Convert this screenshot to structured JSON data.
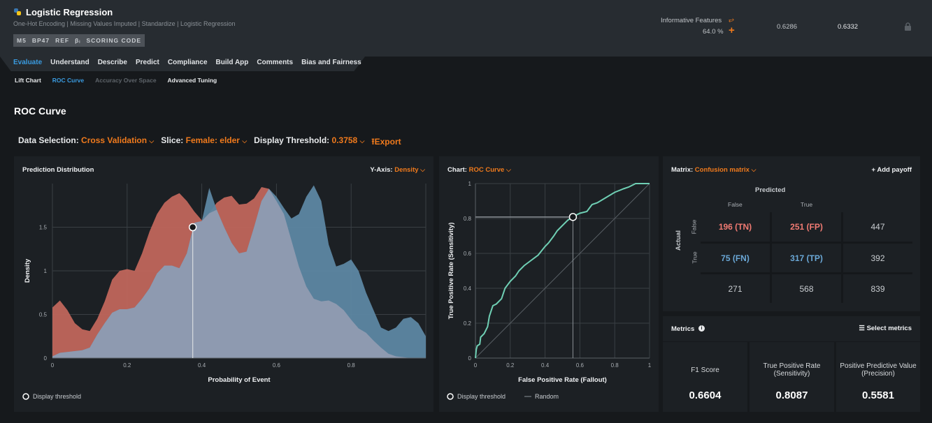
{
  "header": {
    "title": "Logistic Regression",
    "subtitle": "One-Hot Encoding | Missing Values Imputed | Standardize | Logistic Regression",
    "badges": [
      "M5",
      "BP47",
      "REF",
      "βᵢ",
      "SCORING CODE"
    ],
    "informative_features_label": "Informative Features",
    "informative_features_pct": "64.0 %",
    "score_validation": "0.6286",
    "score_cv": "0.6332",
    "icons": [
      "python-icon",
      "feature-list-icon",
      "plus-icon",
      "lock-icon"
    ]
  },
  "tabs": [
    "Evaluate",
    "Understand",
    "Describe",
    "Predict",
    "Compliance",
    "Build App",
    "Comments",
    "Bias and Fairness"
  ],
  "subtabs": [
    "Lift Chart",
    "ROC Curve",
    "Accuracy Over Space",
    "Advanced Tuning"
  ],
  "page_title": "ROC Curve",
  "controls": {
    "data_selection_label": "Data Selection:",
    "data_selection": "Cross Validation",
    "slice_label": "Slice:",
    "slice": "Female: elder",
    "threshold_label": "Display Threshold:",
    "threshold": "0.3758",
    "export": "Export"
  },
  "colors": {
    "accent": "#f07a1c",
    "active_tab": "#3a9be0",
    "negative": "#c0665c",
    "positive": "#5d87a3",
    "overlap": "#8e9ab0",
    "roc": "#6fcfb4"
  },
  "chart_data": [
    {
      "type": "area",
      "title": "Prediction Distribution",
      "yaxis_selector_label": "Y-Axis:",
      "yaxis_selector": "Density",
      "xlabel": "Probability of Event",
      "ylabel": "Density",
      "xlim": [
        0,
        1
      ],
      "ylim": [
        0,
        2
      ],
      "xticks": [
        "0",
        "0.2",
        "0.4",
        "0.6",
        "0.8",
        ""
      ],
      "xtick_values": [
        0,
        0.2,
        0.4,
        0.6,
        0.8,
        1
      ],
      "yticks": [
        "0",
        "0.5",
        "1",
        "1.5"
      ],
      "ytick_values": [
        0,
        0.5,
        1,
        1.5
      ],
      "grid": true,
      "x": [
        0,
        0.02,
        0.04,
        0.06,
        0.08,
        0.1,
        0.12,
        0.14,
        0.16,
        0.18,
        0.2,
        0.22,
        0.24,
        0.26,
        0.28,
        0.3,
        0.32,
        0.34,
        0.36,
        0.38,
        0.4,
        0.42,
        0.44,
        0.46,
        0.48,
        0.5,
        0.52,
        0.54,
        0.56,
        0.58,
        0.6,
        0.62,
        0.64,
        0.66,
        0.68,
        0.7,
        0.72,
        0.74,
        0.76,
        0.78,
        0.8,
        0.82,
        0.84,
        0.86,
        0.88,
        0.9,
        0.92,
        0.94,
        0.96,
        0.98,
        1
      ],
      "series": [
        {
          "values": [
            0.58,
            0.66,
            0.55,
            0.4,
            0.33,
            0.31,
            0.45,
            0.65,
            0.9,
            1.0,
            1.02,
            1.0,
            1.2,
            1.45,
            1.65,
            1.78,
            1.85,
            1.89,
            1.8,
            1.68,
            1.58,
            1.66,
            1.78,
            1.84,
            1.86,
            1.76,
            1.77,
            1.83,
            1.96,
            1.94,
            1.8,
            1.65,
            1.35,
            1.05,
            0.82,
            0.68,
            0.65,
            0.66,
            0.62,
            0.55,
            0.44,
            0.34,
            0.29,
            0.2,
            0.12,
            0.05,
            0.02,
            0.01,
            0,
            0,
            0
          ]
        },
        {
          "values": [
            0.02,
            0.06,
            0.07,
            0.08,
            0.09,
            0.12,
            0.27,
            0.4,
            0.52,
            0.56,
            0.56,
            0.58,
            0.68,
            0.8,
            0.97,
            1.06,
            1.06,
            1.03,
            1.2,
            1.55,
            1.57,
            1.95,
            1.7,
            1.5,
            1.32,
            1.2,
            1.22,
            1.5,
            1.8,
            1.94,
            1.85,
            1.72,
            1.6,
            1.65,
            1.85,
            1.98,
            1.8,
            1.3,
            1.05,
            1.08,
            1.13,
            1.0,
            0.75,
            0.55,
            0.35,
            0.31,
            0.35,
            0.45,
            0.47,
            0.4,
            0.25
          ]
        }
      ],
      "threshold": 0.3758,
      "threshold_density": 1.5,
      "legend": "Display threshold"
    },
    {
      "type": "line",
      "chart_selector_label": "Chart:",
      "chart_selector": "ROC Curve",
      "xlabel": "False Positive Rate (Fallout)",
      "ylabel": "True Positive Rate (Sensitivity)",
      "xlim": [
        0,
        1
      ],
      "ylim": [
        0,
        1
      ],
      "xticks": [
        "0",
        "0.2",
        "0.4",
        "0.6",
        "0.8",
        "1"
      ],
      "xtick_values": [
        0,
        0.2,
        0.4,
        0.6,
        0.8,
        1
      ],
      "yticks": [
        "0",
        "0.2",
        "0.4",
        "0.6",
        "0.8",
        "1"
      ],
      "ytick_values": [
        0,
        0.2,
        0.4,
        0.6,
        0.8,
        1
      ],
      "grid": true,
      "fpr": [
        0,
        0.005,
        0.01,
        0.025,
        0.03,
        0.05,
        0.07,
        0.08,
        0.1,
        0.12,
        0.15,
        0.17,
        0.2,
        0.23,
        0.25,
        0.28,
        0.32,
        0.36,
        0.4,
        0.42,
        0.45,
        0.47,
        0.5,
        0.53,
        0.56,
        0.6,
        0.64,
        0.67,
        0.7,
        0.75,
        0.8,
        0.85,
        0.88,
        0.92,
        1
      ],
      "tpr": [
        0,
        0.05,
        0.07,
        0.08,
        0.12,
        0.14,
        0.18,
        0.24,
        0.3,
        0.31,
        0.34,
        0.4,
        0.44,
        0.47,
        0.5,
        0.53,
        0.56,
        0.59,
        0.64,
        0.66,
        0.7,
        0.73,
        0.76,
        0.79,
        0.81,
        0.83,
        0.84,
        0.88,
        0.89,
        0.92,
        0.95,
        0.97,
        0.98,
        1.0,
        1
      ],
      "threshold_point": [
        0.56,
        0.8087
      ],
      "legend": [
        "Display threshold",
        "Random"
      ]
    }
  ],
  "matrix": {
    "selector_label": "Matrix:",
    "selector": "Confusion matrix",
    "add_payoff": "+ Add payoff",
    "predicted": "Predicted",
    "actual": "Actual",
    "col_labels": [
      "False",
      "True"
    ],
    "row_labels": [
      "False",
      "True"
    ],
    "rows": [
      [
        "196 (TN)",
        "251 (FP)",
        "447"
      ],
      [
        "75 (FN)",
        "317 (TP)",
        "392"
      ],
      [
        "271",
        "568",
        "839"
      ]
    ],
    "neg_color": "#f07a72",
    "pos_color": "#6aa7d6"
  },
  "metrics": {
    "title": "Metrics",
    "select": "Select metrics",
    "items": [
      {
        "label": "F1 Score",
        "value": "0.6604"
      },
      {
        "label": "True Positive Rate (Sensitivity)",
        "value": "0.8087"
      },
      {
        "label": "Positive Predictive Value (Precision)",
        "value": "0.5581"
      }
    ]
  }
}
